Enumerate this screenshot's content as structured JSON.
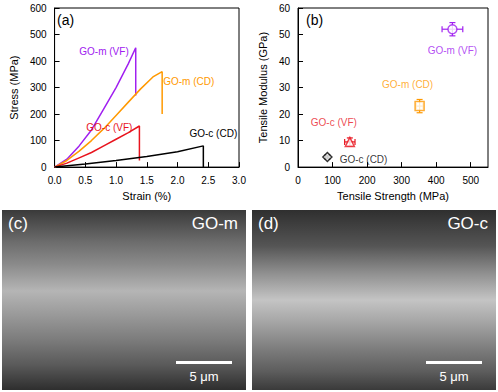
{
  "chart_data": [
    {
      "type": "line",
      "panel": "(a)",
      "xlabel": "Strain (%)",
      "ylabel": "Stress (MPa)",
      "xlim": [
        0,
        3
      ],
      "ylim": [
        0,
        600
      ],
      "xticks": [
        {
          "value": 0,
          "label": "0.0"
        },
        {
          "value": 0.5,
          "label": "0.5"
        },
        {
          "value": 1,
          "label": "1.0"
        },
        {
          "value": 1.5,
          "label": "1.5"
        },
        {
          "value": 2,
          "label": "2.0"
        },
        {
          "value": 2.5,
          "label": "2.5"
        },
        {
          "value": 3,
          "label": "3.0"
        }
      ],
      "yticks": [
        0,
        100,
        200,
        300,
        400,
        500,
        600
      ],
      "grid": false,
      "series": [
        {
          "name": "GO-m (VF)",
          "color": "#a020f0",
          "x": [
            0,
            0.2,
            0.4,
            0.6,
            0.8,
            1.0,
            1.2,
            1.32,
            1.32
          ],
          "values": [
            0,
            30,
            80,
            140,
            220,
            300,
            390,
            450,
            270
          ]
        },
        {
          "name": "GO-m (CD)",
          "color": "#ff9900",
          "x": [
            0,
            0.2,
            0.4,
            0.6,
            0.8,
            1.0,
            1.2,
            1.4,
            1.6,
            1.75,
            1.75
          ],
          "values": [
            0,
            25,
            60,
            100,
            145,
            195,
            245,
            295,
            340,
            360,
            200
          ]
        },
        {
          "name": "GO-c (VF)",
          "color": "#e8141e",
          "x": [
            0,
            0.2,
            0.4,
            0.6,
            0.8,
            1.0,
            1.2,
            1.38,
            1.38
          ],
          "values": [
            0,
            15,
            35,
            55,
            80,
            105,
            130,
            155,
            25
          ]
        },
        {
          "name": "GO-c (CD)",
          "color": "#000000",
          "x": [
            0,
            0.5,
            1.0,
            1.5,
            2.0,
            2.42,
            2.42
          ],
          "values": [
            0,
            12,
            25,
            40,
            58,
            80,
            0
          ]
        }
      ]
    },
    {
      "type": "scatter",
      "panel": "(b)",
      "xlabel": "Tensile Strength (MPa)",
      "ylabel": "Tensile Modulus (GPa)",
      "xlim": [
        0,
        550
      ],
      "ylim": [
        0,
        60
      ],
      "xticks": [
        0,
        100,
        200,
        300,
        400,
        500
      ],
      "yticks": [
        0,
        10,
        20,
        30,
        40,
        50,
        60
      ],
      "grid": false,
      "series": [
        {
          "name": "GO-m (VF)",
          "color": "#a020f0",
          "marker": "circle",
          "x": [
            447
          ],
          "values": [
            52
          ],
          "x_error": [
            30
          ],
          "y_error": [
            2.5
          ]
        },
        {
          "name": "GO-m (CD)",
          "color": "#ff9900",
          "marker": "square",
          "x": [
            352
          ],
          "values": [
            23
          ],
          "x_error": [
            10
          ],
          "y_error": [
            2.5
          ]
        },
        {
          "name": "GO-c (VF)",
          "color": "#e8141e",
          "marker": "triangle",
          "x": [
            150
          ],
          "values": [
            9.5
          ],
          "x_error": [
            15
          ],
          "y_error": [
            1.5
          ]
        },
        {
          "name": "GO-c (CD)",
          "color": "#000000",
          "marker": "diamond",
          "x": [
            85
          ],
          "values": [
            3.8
          ],
          "x_error": [
            5
          ],
          "y_error": [
            0.7
          ]
        }
      ]
    }
  ],
  "images": [
    {
      "panel": "(c)",
      "title": "GO-m",
      "scale_bar": "5 μm"
    },
    {
      "panel": "(d)",
      "title": "GO-c",
      "scale_bar": "5 μm"
    }
  ]
}
